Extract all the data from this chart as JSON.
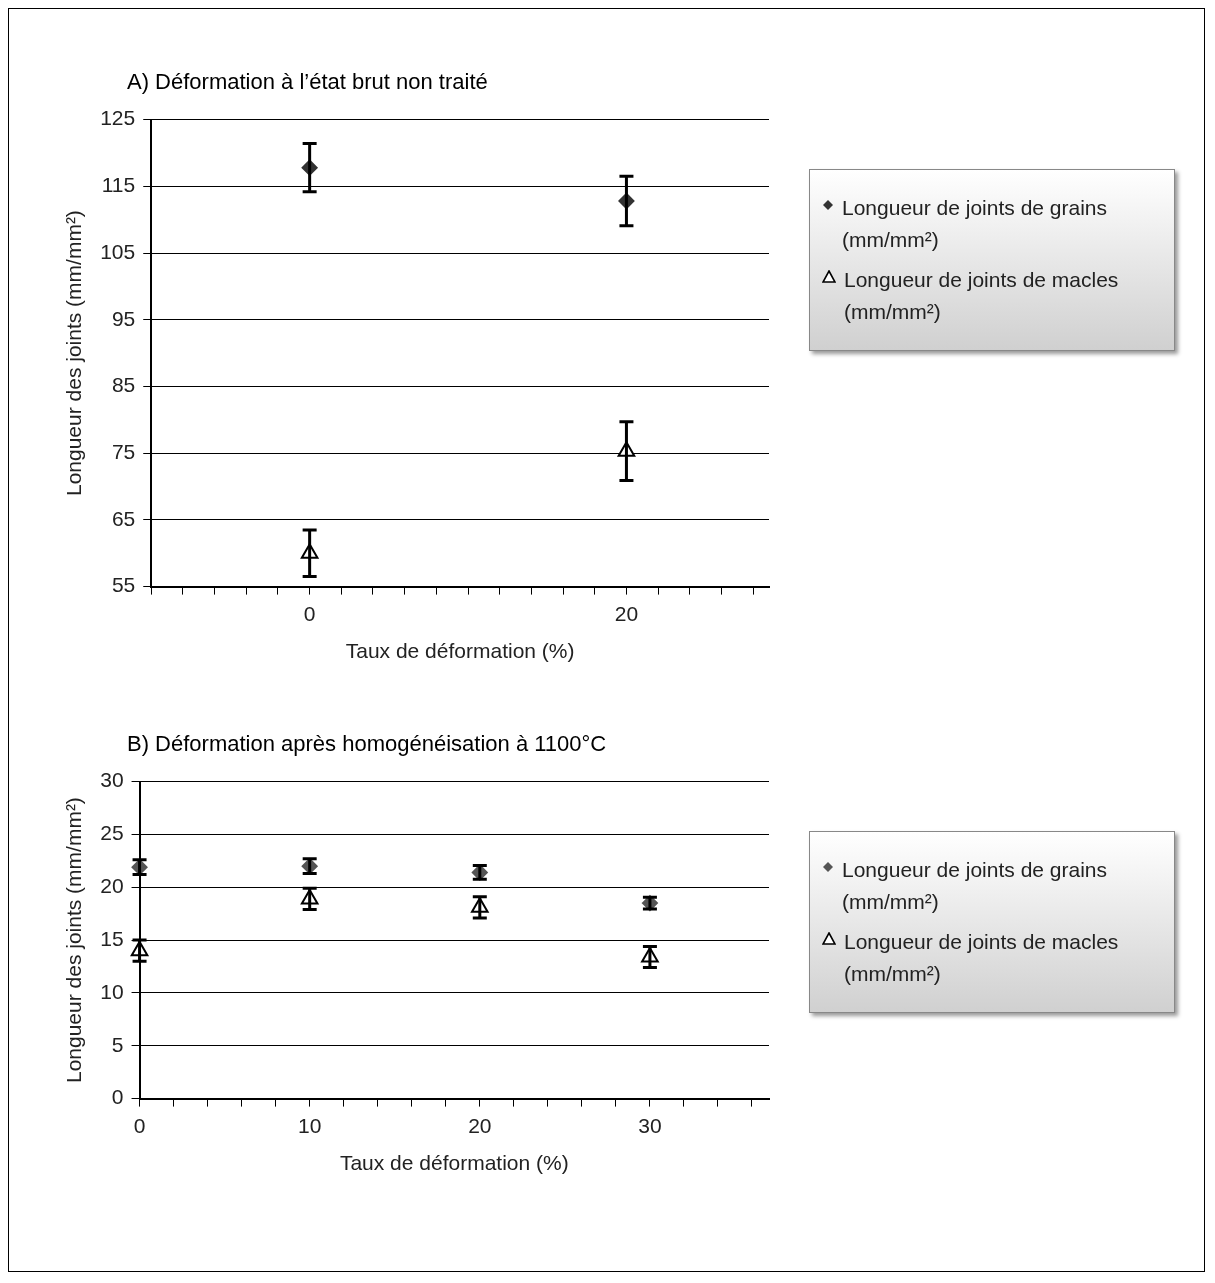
{
  "chart_data": [
    {
      "type": "scatter",
      "title": "A)  Déformation à l’état brut non traité",
      "xlabel": "Taux de déformation (%)",
      "ylabel": "Longueur des joints (mm/mm²)",
      "xlim": [
        -10,
        29
      ],
      "xticks": [
        {
          "value": -10,
          "label": null
        },
        {
          "value": -8,
          "label": null
        },
        {
          "value": -6,
          "label": null
        },
        {
          "value": -4,
          "label": null
        },
        {
          "value": -2,
          "label": null
        },
        0,
        {
          "value": 2,
          "label": null
        },
        {
          "value": 4,
          "label": null
        },
        {
          "value": 6,
          "label": null
        },
        {
          "value": 8,
          "label": null
        },
        {
          "value": 10,
          "label": null
        },
        {
          "value": 12,
          "label": null
        },
        {
          "value": 14,
          "label": null
        },
        {
          "value": 16,
          "label": null
        },
        {
          "value": 18,
          "label": null
        },
        20,
        {
          "value": 22,
          "label": null
        },
        {
          "value": 24,
          "label": null
        },
        {
          "value": 26,
          "label": null
        },
        {
          "value": 28,
          "label": null
        }
      ],
      "ylim": [
        55,
        125
      ],
      "yticks": [
        55,
        65,
        75,
        85,
        95,
        105,
        115,
        125
      ],
      "grid": "y",
      "legend": "right",
      "x": [
        0,
        20
      ],
      "series": [
        {
          "name": "Longueur de joints de grains (mm/mm²)",
          "color": "#333333",
          "marker": "diamond",
          "values": [
            117.8,
            112.8
          ],
          "errors": [
            3.6,
            3.7
          ]
        },
        {
          "name": "Longueur de joints de macles (mm/mm²)",
          "color": "#000000",
          "marker": "triangle",
          "values": [
            60,
            75.3
          ],
          "errors": [
            3.5,
            4.4
          ]
        }
      ]
    },
    {
      "type": "scatter",
      "title": "B)  Déformation après homogénéisation à 1100°C",
      "xlabel": "Taux de déformation (%)",
      "ylabel": "Longueur des joints (mm/mm²)",
      "xlim": [
        0,
        37
      ],
      "xticks": [
        0,
        {
          "value": 2,
          "label": null
        },
        {
          "value": 4,
          "label": null
        },
        {
          "value": 6,
          "label": null
        },
        {
          "value": 8,
          "label": null
        },
        10,
        {
          "value": 12,
          "label": null
        },
        {
          "value": 14,
          "label": null
        },
        {
          "value": 16,
          "label": null
        },
        {
          "value": 18,
          "label": null
        },
        20,
        {
          "value": 22,
          "label": null
        },
        {
          "value": 24,
          "label": null
        },
        {
          "value": 26,
          "label": null
        },
        {
          "value": 28,
          "label": null
        },
        30,
        {
          "value": 32,
          "label": null
        },
        {
          "value": 34,
          "label": null
        },
        {
          "value": 36,
          "label": null
        }
      ],
      "ylim": [
        0,
        30
      ],
      "yticks": [
        0,
        5,
        10,
        15,
        20,
        25,
        30
      ],
      "grid": "y",
      "legend": "right",
      "x": [
        0,
        10,
        20,
        30
      ],
      "series": [
        {
          "name": "Longueur de joints de grains (mm/mm²)",
          "color": "#555555",
          "marker": "diamond",
          "values": [
            21.9,
            22,
            21.4,
            18.5
          ],
          "errors": [
            0.7,
            0.7,
            0.65,
            0.55
          ]
        },
        {
          "name": "Longueur de joints de macles (mm/mm²)",
          "color": "#000000",
          "marker": "triangle",
          "values": [
            14,
            18.9,
            18.1,
            13.4
          ],
          "errors": [
            1,
            1,
            1,
            1
          ]
        }
      ]
    }
  ]
}
